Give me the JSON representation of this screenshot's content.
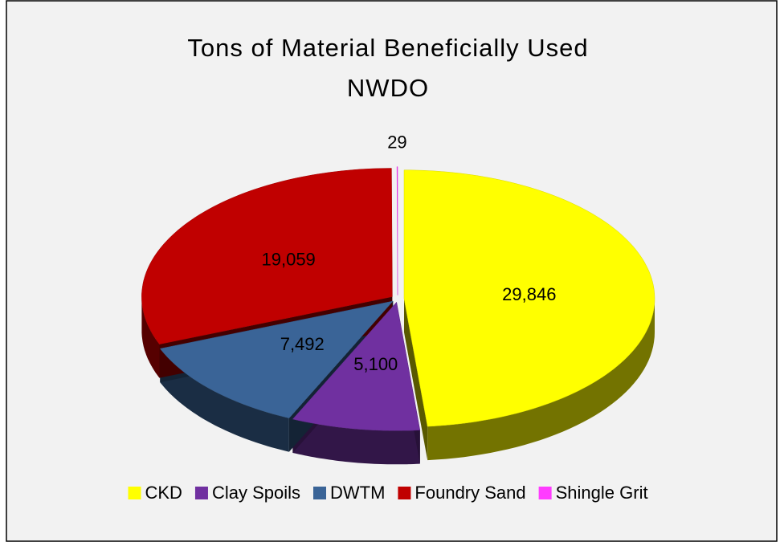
{
  "chart_data": {
    "type": "pie",
    "title": "Tons of Material Beneficially Used",
    "subtitle": "NWDO",
    "categories": [
      "CKD",
      "Clay Spoils",
      "DWTM",
      "Foundry Sand",
      "Shingle Grit"
    ],
    "values": [
      29846,
      5100,
      7492,
      19059,
      29
    ],
    "value_labels": [
      "29,846",
      "5,100",
      "7,492",
      "19,059",
      "29"
    ],
    "colors": [
      "#ffff00",
      "#7030a0",
      "#3a6497",
      "#c00000",
      "#ff3cff"
    ],
    "legend": "bottom"
  }
}
